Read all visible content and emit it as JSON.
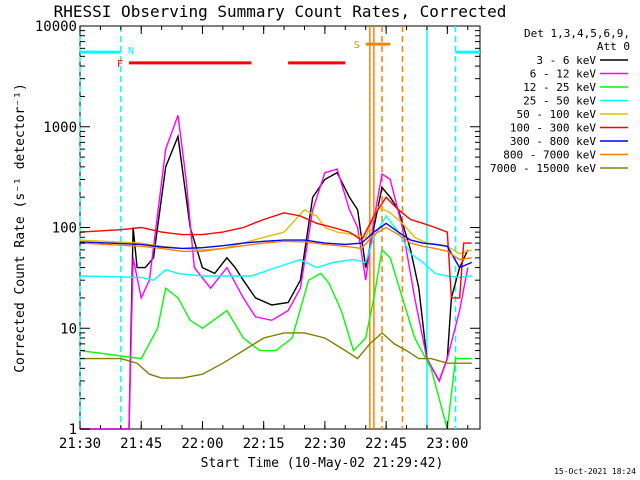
{
  "chart_data": {
    "type": "line",
    "title": "RHESSI Observing Summary Count Rates, Corrected",
    "xlabel": "Start Time (10-May-02 21:29:42)",
    "ylabel": "Corrected Count Rate (s⁻¹ detector⁻¹)",
    "yscale": "log",
    "ylim": [
      1,
      10000
    ],
    "xlim": [
      "21:30",
      "23:08"
    ],
    "x_ticks": [
      "21:30",
      "21:45",
      "22:00",
      "22:15",
      "22:30",
      "22:45",
      "23:00"
    ],
    "y_ticks": [
      "1",
      "10",
      "100",
      "1000",
      "10000"
    ],
    "legend_title": "Det 1,3,4,5,6,9,",
    "legend_subtitle": "Att 0",
    "legend_position": "right",
    "timestamp": "15-Oct-2021 18:24",
    "flag_labels": [
      {
        "text": "N",
        "color": "#00ffff"
      },
      {
        "text": "F",
        "color": "#ff0000"
      },
      {
        "text": "S",
        "color": "#ff8000"
      }
    ],
    "flag_bars": [
      {
        "flag": "N",
        "color": "#00ffff",
        "spans": [
          [
            "21:30",
            "21:40"
          ],
          [
            "23:02",
            "23:08"
          ]
        ]
      },
      {
        "flag": "F",
        "color": "#ff0000",
        "spans": [
          [
            "21:42",
            "22:12"
          ],
          [
            "22:21",
            "22:35"
          ]
        ]
      },
      {
        "flag": "S",
        "color": "#ff8000",
        "spans": [
          [
            "22:40",
            "22:46"
          ]
        ]
      }
    ],
    "vlines": [
      {
        "t": "21:30",
        "color": "#00ffff",
        "style": "dashed"
      },
      {
        "t": "21:40",
        "color": "#00ffff",
        "style": "dashed"
      },
      {
        "t": "22:55",
        "color": "#00ffff",
        "style": "solid"
      },
      {
        "t": "23:02",
        "color": "#00ffff",
        "style": "dashed"
      },
      {
        "t": "22:41",
        "color": "#ff8000",
        "style": "solid"
      },
      {
        "t": "22:42",
        "color": "#ff8000",
        "style": "solid"
      },
      {
        "t": "22:44",
        "color": "#ff8000",
        "style": "dashed"
      },
      {
        "t": "22:49",
        "color": "#ff8000",
        "style": "dashed"
      }
    ],
    "series": [
      {
        "name": "3 - 6 keV",
        "color": "#000000",
        "points": [
          [
            "21:30",
            1
          ],
          [
            "21:42",
            1
          ],
          [
            "21:43",
            100
          ],
          [
            "21:44",
            40
          ],
          [
            "21:46",
            40
          ],
          [
            "21:48",
            50
          ],
          [
            "21:51",
            400
          ],
          [
            "21:54",
            800
          ],
          [
            "21:57",
            100
          ],
          [
            "22:00",
            40
          ],
          [
            "22:03",
            35
          ],
          [
            "22:06",
            50
          ],
          [
            "22:08",
            40
          ],
          [
            "22:10",
            30
          ],
          [
            "22:13",
            20
          ],
          [
            "22:17",
            17
          ],
          [
            "22:21",
            18
          ],
          [
            "22:24",
            30
          ],
          [
            "22:27",
            200
          ],
          [
            "22:30",
            300
          ],
          [
            "22:33",
            350
          ],
          [
            "22:36",
            200
          ],
          [
            "22:38",
            150
          ],
          [
            "22:40",
            40
          ],
          [
            "22:42",
            100
          ],
          [
            "22:44",
            250
          ],
          [
            "22:46",
            200
          ],
          [
            "22:48",
            150
          ],
          [
            "22:51",
            60
          ],
          [
            "22:53",
            25
          ],
          [
            "22:55",
            5
          ],
          [
            "22:58",
            3
          ],
          [
            "23:00",
            5
          ],
          [
            "23:01",
            20
          ],
          [
            "23:03",
            40
          ],
          [
            "23:05",
            60
          ]
        ]
      },
      {
        "name": "6 - 12 keV",
        "color": "#ff00ff",
        "points": [
          [
            "21:30",
            1
          ],
          [
            "21:42",
            1
          ],
          [
            "21:43",
            50
          ],
          [
            "21:45",
            20
          ],
          [
            "21:47",
            30
          ],
          [
            "21:51",
            600
          ],
          [
            "21:54",
            1300
          ],
          [
            "21:56",
            300
          ],
          [
            "21:58",
            40
          ],
          [
            "22:02",
            25
          ],
          [
            "22:06",
            40
          ],
          [
            "22:10",
            20
          ],
          [
            "22:13",
            13
          ],
          [
            "22:17",
            12
          ],
          [
            "22:21",
            15
          ],
          [
            "22:24",
            25
          ],
          [
            "22:27",
            150
          ],
          [
            "22:30",
            350
          ],
          [
            "22:33",
            380
          ],
          [
            "22:36",
            150
          ],
          [
            "22:38",
            100
          ],
          [
            "22:40",
            30
          ],
          [
            "22:42",
            120
          ],
          [
            "22:44",
            340
          ],
          [
            "22:46",
            300
          ],
          [
            "22:49",
            100
          ],
          [
            "22:52",
            20
          ],
          [
            "22:55",
            5
          ],
          [
            "22:58",
            3
          ],
          [
            "23:00",
            5
          ],
          [
            "23:03",
            15
          ],
          [
            "23:05",
            40
          ]
        ]
      },
      {
        "name": "12 - 25 keV",
        "color": "#00ff00",
        "points": [
          [
            "21:30",
            6
          ],
          [
            "21:45",
            5
          ],
          [
            "21:49",
            10
          ],
          [
            "21:51",
            25
          ],
          [
            "21:54",
            20
          ],
          [
            "21:57",
            12
          ],
          [
            "22:00",
            10
          ],
          [
            "22:06",
            15
          ],
          [
            "22:10",
            8
          ],
          [
            "22:14",
            6
          ],
          [
            "22:18",
            6
          ],
          [
            "22:22",
            8
          ],
          [
            "22:26",
            30
          ],
          [
            "22:29",
            35
          ],
          [
            "22:31",
            28
          ],
          [
            "22:34",
            15
          ],
          [
            "22:37",
            6
          ],
          [
            "22:40",
            8
          ],
          [
            "22:42",
            20
          ],
          [
            "22:44",
            60
          ],
          [
            "22:46",
            50
          ],
          [
            "22:49",
            20
          ],
          [
            "22:52",
            8
          ],
          [
            "22:56",
            4
          ],
          [
            "22:58",
            2
          ],
          [
            "23:00",
            1
          ],
          [
            "23:02",
            5
          ],
          [
            "23:06",
            5
          ]
        ]
      },
      {
        "name": "25 - 50 keV",
        "color": "#00ffff",
        "points": [
          [
            "21:30",
            33
          ],
          [
            "21:45",
            32
          ],
          [
            "21:48",
            30
          ],
          [
            "21:51",
            38
          ],
          [
            "21:54",
            35
          ],
          [
            "22:00",
            33
          ],
          [
            "22:06",
            33
          ],
          [
            "22:12",
            33
          ],
          [
            "22:18",
            40
          ],
          [
            "22:24",
            48
          ],
          [
            "22:28",
            40
          ],
          [
            "22:32",
            45
          ],
          [
            "22:37",
            48
          ],
          [
            "22:40",
            45
          ],
          [
            "22:42",
            80
          ],
          [
            "22:45",
            130
          ],
          [
            "22:48",
            90
          ],
          [
            "22:51",
            55
          ],
          [
            "22:54",
            45
          ],
          [
            "22:57",
            35
          ],
          [
            "23:00",
            33
          ],
          [
            "23:03",
            32
          ],
          [
            "23:06",
            33
          ]
        ]
      },
      {
        "name": "50 - 100 keV",
        "color": "#e0c000",
        "points": [
          [
            "21:30",
            75
          ],
          [
            "21:45",
            70
          ],
          [
            "21:50",
            65
          ],
          [
            "21:55",
            62
          ],
          [
            "22:00",
            60
          ],
          [
            "22:05",
            62
          ],
          [
            "22:10",
            70
          ],
          [
            "22:15",
            80
          ],
          [
            "22:20",
            90
          ],
          [
            "22:25",
            150
          ],
          [
            "22:28",
            130
          ],
          [
            "22:30",
            100
          ],
          [
            "22:33",
            90
          ],
          [
            "22:37",
            85
          ],
          [
            "22:40",
            80
          ],
          [
            "22:43",
            160
          ],
          [
            "22:46",
            140
          ],
          [
            "22:49",
            110
          ],
          [
            "22:52",
            80
          ],
          [
            "22:55",
            70
          ],
          [
            "22:58",
            68
          ],
          [
            "23:00",
            65
          ],
          [
            "23:03",
            55
          ],
          [
            "23:06",
            60
          ]
        ]
      },
      {
        "name": "100 - 300 keV",
        "color": "#ff0000",
        "points": [
          [
            "21:30",
            90
          ],
          [
            "21:40",
            95
          ],
          [
            "21:45",
            100
          ],
          [
            "21:50",
            90
          ],
          [
            "21:55",
            85
          ],
          [
            "22:00",
            85
          ],
          [
            "22:05",
            90
          ],
          [
            "22:10",
            100
          ],
          [
            "22:15",
            120
          ],
          [
            "22:20",
            140
          ],
          [
            "22:24",
            130
          ],
          [
            "22:28",
            110
          ],
          [
            "22:32",
            100
          ],
          [
            "22:36",
            90
          ],
          [
            "22:39",
            75
          ],
          [
            "22:42",
            130
          ],
          [
            "22:45",
            200
          ],
          [
            "22:48",
            150
          ],
          [
            "22:51",
            120
          ],
          [
            "22:54",
            110
          ],
          [
            "22:57",
            100
          ],
          [
            "23:00",
            90
          ],
          [
            "23:01",
            20
          ],
          [
            "23:03",
            20
          ],
          [
            "23:04",
            70
          ],
          [
            "23:06",
            70
          ]
        ]
      },
      {
        "name": "300 - 800 keV",
        "color": "#0000ff",
        "points": [
          [
            "21:30",
            72
          ],
          [
            "21:45",
            68
          ],
          [
            "21:50",
            64
          ],
          [
            "21:55",
            62
          ],
          [
            "22:00",
            63
          ],
          [
            "22:05",
            66
          ],
          [
            "22:10",
            70
          ],
          [
            "22:15",
            73
          ],
          [
            "22:20",
            75
          ],
          [
            "22:25",
            75
          ],
          [
            "22:30",
            70
          ],
          [
            "22:35",
            68
          ],
          [
            "22:39",
            70
          ],
          [
            "22:42",
            90
          ],
          [
            "22:45",
            110
          ],
          [
            "22:48",
            90
          ],
          [
            "22:51",
            75
          ],
          [
            "22:54",
            70
          ],
          [
            "22:57",
            68
          ],
          [
            "23:00",
            65
          ],
          [
            "23:03",
            40
          ],
          [
            "23:06",
            45
          ]
        ]
      },
      {
        "name": "800 - 7000 keV",
        "color": "#ff8000",
        "points": [
          [
            "21:30",
            70
          ],
          [
            "21:45",
            65
          ],
          [
            "21:50",
            62
          ],
          [
            "21:55",
            58
          ],
          [
            "22:00",
            58
          ],
          [
            "22:05",
            62
          ],
          [
            "22:10",
            66
          ],
          [
            "22:15",
            70
          ],
          [
            "22:20",
            73
          ],
          [
            "22:25",
            72
          ],
          [
            "22:30",
            68
          ],
          [
            "22:35",
            65
          ],
          [
            "22:39",
            62
          ],
          [
            "22:42",
            85
          ],
          [
            "22:45",
            100
          ],
          [
            "22:48",
            85
          ],
          [
            "22:51",
            70
          ],
          [
            "22:54",
            65
          ],
          [
            "22:57",
            62
          ],
          [
            "23:00",
            58
          ],
          [
            "23:03",
            48
          ],
          [
            "23:06",
            50
          ]
        ]
      },
      {
        "name": "7000 - 15000 keV",
        "color": "#808000",
        "points": [
          [
            "21:30",
            5
          ],
          [
            "21:40",
            5
          ],
          [
            "21:44",
            4.5
          ],
          [
            "21:47",
            3.5
          ],
          [
            "21:50",
            3.2
          ],
          [
            "21:55",
            3.2
          ],
          [
            "22:00",
            3.5
          ],
          [
            "22:05",
            4.5
          ],
          [
            "22:10",
            6
          ],
          [
            "22:15",
            8
          ],
          [
            "22:20",
            9
          ],
          [
            "22:25",
            9
          ],
          [
            "22:30",
            8
          ],
          [
            "22:35",
            6
          ],
          [
            "22:38",
            5
          ],
          [
            "22:41",
            7
          ],
          [
            "22:44",
            9
          ],
          [
            "22:47",
            7
          ],
          [
            "22:50",
            6
          ],
          [
            "22:53",
            5
          ],
          [
            "22:56",
            5
          ],
          [
            "23:00",
            4.5
          ],
          [
            "23:03",
            4.5
          ],
          [
            "23:06",
            4.5
          ]
        ]
      }
    ]
  }
}
